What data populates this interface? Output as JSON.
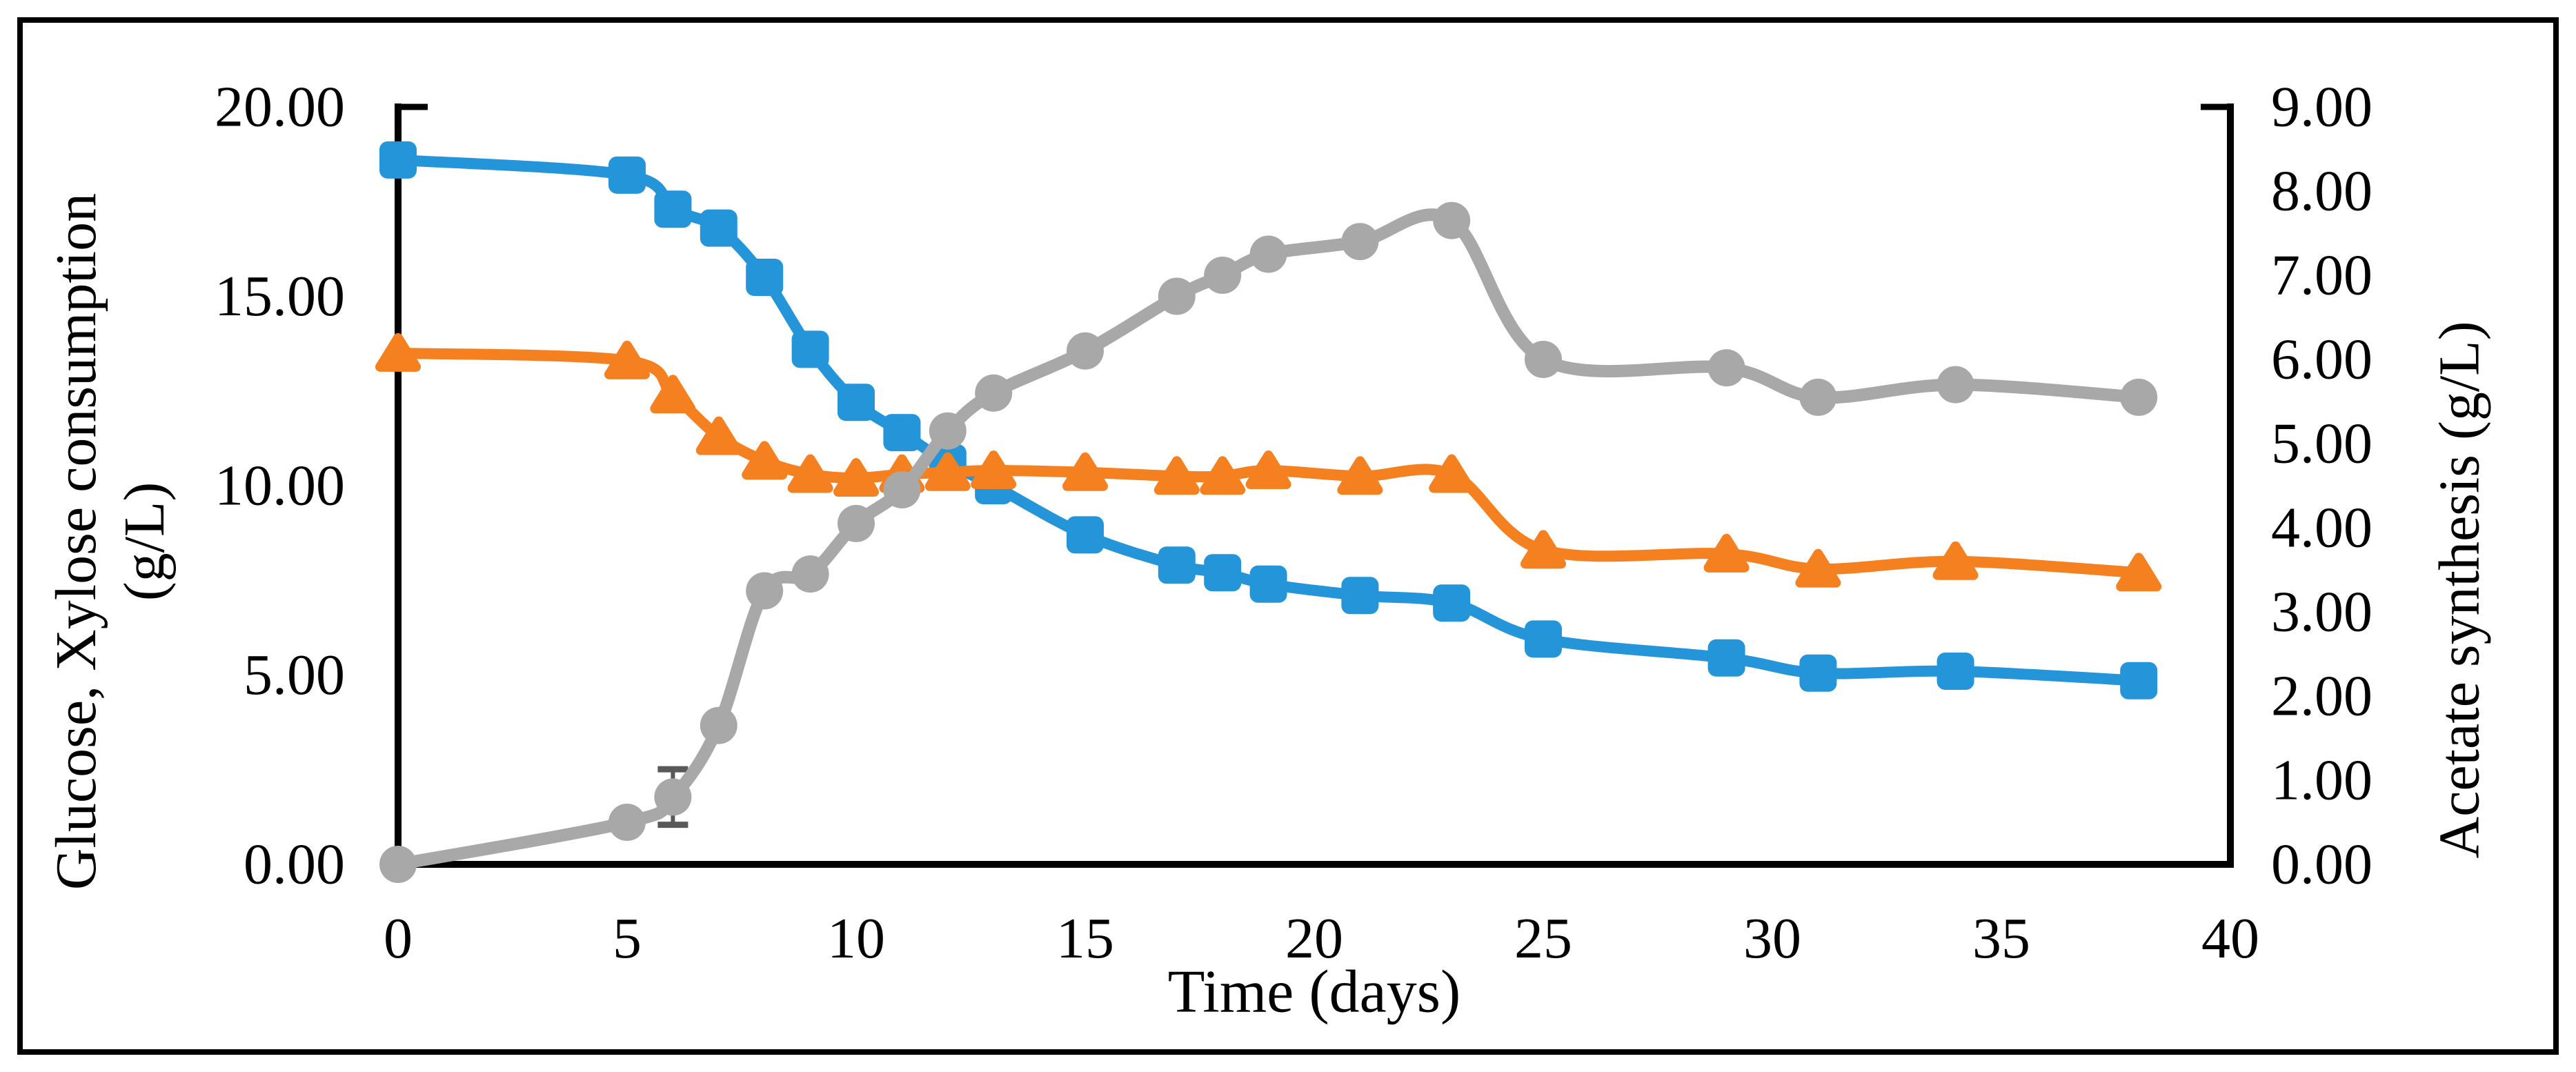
{
  "figure": {
    "background": "#ffffff",
    "frame_border_color": "#000000"
  },
  "chart_data": {
    "type": "line",
    "title": "",
    "xlabel": "Time (days)",
    "ylabel_left": "Glucose, Xylose consumption (g/L)",
    "ylabel_left_lines": [
      "Glucose, Xylose consumption",
      "(g/L)"
    ],
    "ylabel_right": "Acetate synthesis (g/L)",
    "xlim": [
      0,
      40
    ],
    "ylim_left": [
      0,
      20
    ],
    "ylim_right": [
      0,
      9
    ],
    "grid": false,
    "legend": "none",
    "x_ticks": [
      "0",
      "5",
      "10",
      "15",
      "20",
      "25",
      "30",
      "35",
      "40"
    ],
    "x_tick_values": [
      0,
      5,
      10,
      15,
      20,
      25,
      30,
      35,
      40
    ],
    "y_left_ticks": [
      "0.00",
      "5.00",
      "10.00",
      "15.00",
      "20.00"
    ],
    "y_left_tick_values": [
      0,
      5,
      10,
      15,
      20
    ],
    "y_right_ticks": [
      "0.00",
      "1.00",
      "2.00",
      "3.00",
      "4.00",
      "5.00",
      "6.00",
      "7.00",
      "8.00",
      "9.00"
    ],
    "y_right_tick_values": [
      0,
      1,
      2,
      3,
      4,
      5,
      6,
      7,
      8,
      9
    ],
    "x": [
      0,
      5,
      6,
      7,
      8,
      9,
      10,
      11,
      12,
      13,
      15,
      17,
      18,
      19,
      21,
      23,
      25,
      29,
      31,
      34,
      38
    ],
    "series": [
      {
        "name": "Glucose",
        "axis": "left",
        "marker": "square",
        "color": "#2395D8",
        "values": [
          18.6,
          18.2,
          17.3,
          16.8,
          15.5,
          13.6,
          12.2,
          11.4,
          10.6,
          10.0,
          8.7,
          7.9,
          7.7,
          7.4,
          7.1,
          6.9,
          5.95,
          5.45,
          5.05,
          5.1,
          4.85
        ]
      },
      {
        "name": "Xylose",
        "axis": "left",
        "marker": "triangle",
        "color": "#F58020",
        "values": [
          13.5,
          13.3,
          12.4,
          11.3,
          10.65,
          10.3,
          10.2,
          10.3,
          10.35,
          10.4,
          10.35,
          10.25,
          10.25,
          10.4,
          10.25,
          10.3,
          8.3,
          8.2,
          7.8,
          8.0,
          7.7
        ]
      },
      {
        "name": "Acetate",
        "axis": "right",
        "marker": "circle",
        "color": "#A8A8A8",
        "values": [
          0.0,
          0.5,
          0.8,
          1.65,
          3.25,
          3.45,
          4.05,
          4.45,
          5.15,
          5.6,
          6.1,
          6.75,
          7.0,
          7.25,
          7.4,
          7.65,
          6.0,
          5.9,
          5.55,
          5.7,
          5.55
        ],
        "error_bars": [
          {
            "day": 6,
            "center": 0.8,
            "plus": 0.33,
            "minus": 0.33
          }
        ]
      }
    ],
    "error_bar_color": "#595959",
    "axis_color": "#000000"
  }
}
